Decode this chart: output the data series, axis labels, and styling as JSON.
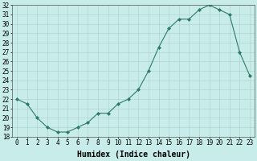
{
  "x": [
    0,
    1,
    2,
    3,
    4,
    5,
    6,
    7,
    8,
    9,
    10,
    11,
    12,
    13,
    14,
    15,
    16,
    17,
    18,
    19,
    20,
    21,
    22,
    23
  ],
  "y": [
    22.0,
    21.5,
    20.0,
    19.0,
    18.5,
    18.5,
    19.0,
    19.5,
    20.5,
    20.5,
    21.5,
    22.0,
    23.0,
    25.0,
    27.5,
    29.5,
    30.5,
    30.5,
    31.5,
    32.0,
    31.5,
    31.0,
    27.0,
    24.5
  ],
  "xlabel": "Humidex (Indice chaleur)",
  "ylim": [
    18,
    32
  ],
  "xlim": [
    -0.5,
    23.5
  ],
  "yticks": [
    18,
    19,
    20,
    21,
    22,
    23,
    24,
    25,
    26,
    27,
    28,
    29,
    30,
    31,
    32
  ],
  "xticks": [
    0,
    1,
    2,
    3,
    4,
    5,
    6,
    7,
    8,
    9,
    10,
    11,
    12,
    13,
    14,
    15,
    16,
    17,
    18,
    19,
    20,
    21,
    22,
    23
  ],
  "line_color": "#2d7a6a",
  "marker_color": "#2d7a6a",
  "bg_color": "#c8ecea",
  "grid_color": "#afd4d1",
  "axis_label_fontsize": 6.5,
  "tick_fontsize": 5.5,
  "xlabel_fontsize": 7.0
}
